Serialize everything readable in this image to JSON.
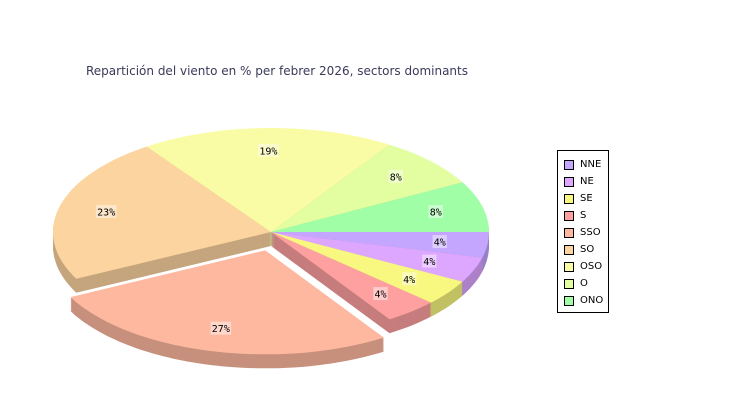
{
  "chart_data": {
    "type": "pie",
    "title": "Repartición del viento en % per febrer 2026, sectors dominants",
    "categories": [
      "NNE",
      "NE",
      "SE",
      "S",
      "SSO",
      "SO",
      "OSO",
      "O",
      "ONO"
    ],
    "values": [
      4,
      4,
      4,
      4,
      27,
      23,
      19,
      8,
      8
    ],
    "labels": [
      "4%",
      "4%",
      "4%",
      "4%",
      "27%",
      "23%",
      "19%",
      "8%",
      "8%"
    ],
    "colors": [
      "#c4a6ff",
      "#dda6ff",
      "#f8f880",
      "#fea0a0",
      "#feb8a0",
      "#fcd4a0",
      "#f9fca4",
      "#e2fea0",
      "#a0fea6"
    ],
    "exploded": [
      "SSO"
    ],
    "legend_position": "right",
    "style": "3d"
  }
}
